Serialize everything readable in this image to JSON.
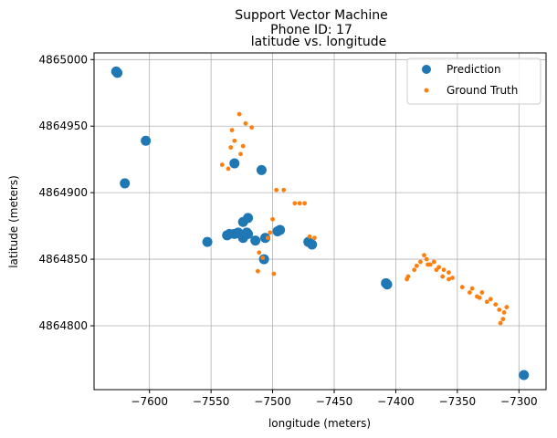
{
  "chart_data": {
    "type": "scatter",
    "title_lines": [
      "Support Vector Machine",
      "Phone ID: 17"
    ],
    "subtitle": "latitude vs. longitude",
    "xlabel": "longitude (meters)",
    "ylabel": "latitude (meters)",
    "xlim": [
      -7645,
      -7278
    ],
    "ylim": [
      4864752,
      4865005
    ],
    "xticks": [
      -7600,
      -7550,
      -7500,
      -7450,
      -7400,
      -7350,
      -7300
    ],
    "yticks": [
      4864800,
      4864850,
      4864900,
      4864950,
      4865000
    ],
    "xtick_labels": [
      "−7600",
      "−7550",
      "−7500",
      "−7450",
      "−7400",
      "−7350",
      "−7300"
    ],
    "ytick_labels": [
      "4864800",
      "4864850",
      "4864900",
      "4864950",
      "4865000"
    ],
    "grid": true,
    "legend_position": "top-right",
    "series": [
      {
        "name": "Prediction",
        "color": "#1f77b4",
        "points": [
          [
            -7627,
            4864991
          ],
          [
            -7626,
            4864990
          ],
          [
            -7603,
            4864939
          ],
          [
            -7620,
            4864907
          ],
          [
            -7531,
            4864922
          ],
          [
            -7509,
            4864917
          ],
          [
            -7553,
            4864863
          ],
          [
            -7537,
            4864868
          ],
          [
            -7535,
            4864869
          ],
          [
            -7531,
            4864869
          ],
          [
            -7528,
            4864870
          ],
          [
            -7525,
            4864868
          ],
          [
            -7524,
            4864866
          ],
          [
            -7521,
            4864870
          ],
          [
            -7520,
            4864869
          ],
          [
            -7524,
            4864878
          ],
          [
            -7520,
            4864881
          ],
          [
            -7514,
            4864864
          ],
          [
            -7506,
            4864866
          ],
          [
            -7507,
            4864850
          ],
          [
            -7496,
            4864871
          ],
          [
            -7494,
            4864872
          ],
          [
            -7471,
            4864863
          ],
          [
            -7468,
            4864861
          ],
          [
            -7408,
            4864832
          ],
          [
            -7407,
            4864831
          ],
          [
            -7296,
            4864763
          ]
        ]
      },
      {
        "name": "Ground Truth",
        "color": "#ff7f0e",
        "points": [
          [
            -7527,
            4864959
          ],
          [
            -7522,
            4864952
          ],
          [
            -7517,
            4864949
          ],
          [
            -7533,
            4864947
          ],
          [
            -7531,
            4864939
          ],
          [
            -7524,
            4864935
          ],
          [
            -7534,
            4864934
          ],
          [
            -7526,
            4864929
          ],
          [
            -7541,
            4864921
          ],
          [
            -7536,
            4864918
          ],
          [
            -7497,
            4864902
          ],
          [
            -7491,
            4864902
          ],
          [
            -7482,
            4864892
          ],
          [
            -7478,
            4864892
          ],
          [
            -7474,
            4864892
          ],
          [
            -7500,
            4864880
          ],
          [
            -7502,
            4864870
          ],
          [
            -7504,
            4864866
          ],
          [
            -7470,
            4864867
          ],
          [
            -7466,
            4864866
          ],
          [
            -7511,
            4864855
          ],
          [
            -7508,
            4864851
          ],
          [
            -7512,
            4864841
          ],
          [
            -7499,
            4864839
          ],
          [
            -7391,
            4864835
          ],
          [
            -7390,
            4864837
          ],
          [
            -7385,
            4864842
          ],
          [
            -7383,
            4864845
          ],
          [
            -7380,
            4864848
          ],
          [
            -7377,
            4864853
          ],
          [
            -7375,
            4864850
          ],
          [
            -7374,
            4864846
          ],
          [
            -7372,
            4864846
          ],
          [
            -7369,
            4864848
          ],
          [
            -7367,
            4864842
          ],
          [
            -7365,
            4864844
          ],
          [
            -7362,
            4864837
          ],
          [
            -7361,
            4864842
          ],
          [
            -7357,
            4864840
          ],
          [
            -7357,
            4864835
          ],
          [
            -7354,
            4864836
          ],
          [
            -7346,
            4864829
          ],
          [
            -7340,
            4864825
          ],
          [
            -7338,
            4864828
          ],
          [
            -7334,
            4864822
          ],
          [
            -7332,
            4864821
          ],
          [
            -7330,
            4864825
          ],
          [
            -7326,
            4864818
          ],
          [
            -7323,
            4864820
          ],
          [
            -7319,
            4864816
          ],
          [
            -7316,
            4864812
          ],
          [
            -7315,
            4864802
          ],
          [
            -7313,
            4864805
          ],
          [
            -7312,
            4864810
          ],
          [
            -7310,
            4864814
          ]
        ]
      }
    ]
  }
}
